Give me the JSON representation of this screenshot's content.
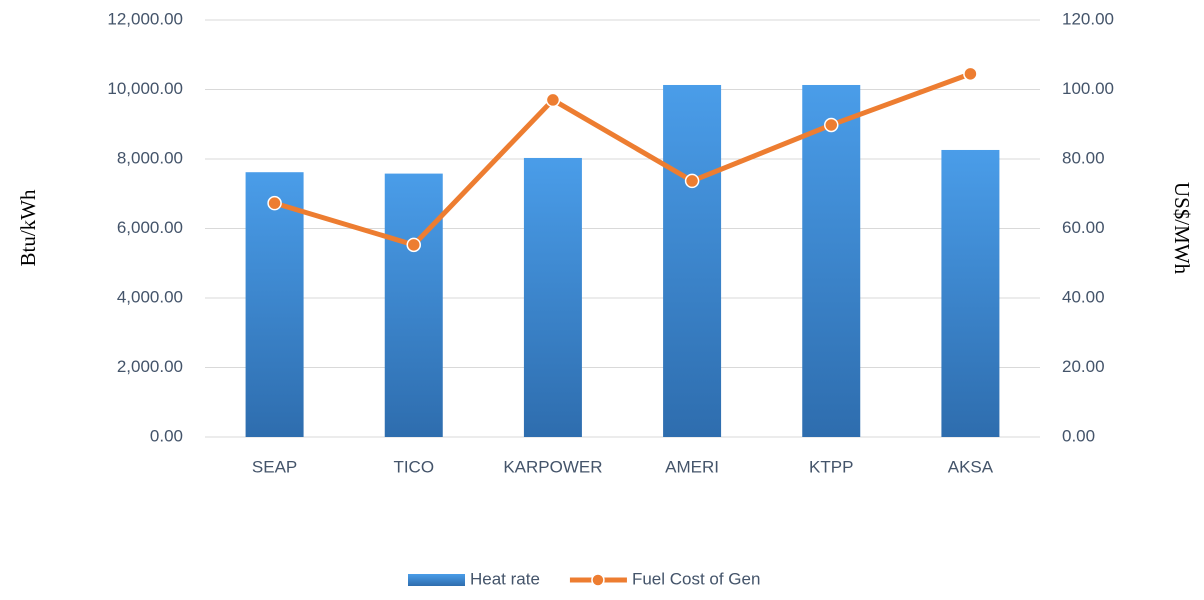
{
  "chart_data": {
    "type": "bar_line",
    "categories": [
      "SEAP",
      "TICO",
      "KARPOWER",
      "AMERI",
      "KTPP",
      "AKSA"
    ],
    "series": [
      {
        "name": "Heat rate",
        "type": "bar",
        "color": "#3d8ad8",
        "values": [
          7620,
          7580,
          8030,
          10130,
          10130,
          8260
        ]
      },
      {
        "name": "Fuel Cost of Gen",
        "type": "line",
        "axis": "y2",
        "color": "#ed7d31",
        "values": [
          67.3,
          55.3,
          97.0,
          73.7,
          89.8,
          104.5
        ]
      }
    ],
    "y_label": "Btu/kWh",
    "y2_label": "US$/MWh",
    "ylim": [
      0,
      12000
    ],
    "yticks": [
      {
        "value": 0,
        "label": "0.00"
      },
      {
        "value": 2000,
        "label": "2,000.00"
      },
      {
        "value": 4000,
        "label": "4,000.00"
      },
      {
        "value": 6000,
        "label": "6,000.00"
      },
      {
        "value": 8000,
        "label": "8,000.00"
      },
      {
        "value": 10000,
        "label": "10,000.00"
      },
      {
        "value": 12000,
        "label": "12,000.00"
      }
    ],
    "y2lim": [
      0,
      120
    ],
    "y2ticks": [
      {
        "value": 0,
        "label": "0.00"
      },
      {
        "value": 20,
        "label": "20.00"
      },
      {
        "value": 40,
        "label": "40.00"
      },
      {
        "value": 60,
        "label": "60.00"
      },
      {
        "value": 80,
        "label": "80.00"
      },
      {
        "value": 100,
        "label": "100.00"
      },
      {
        "value": 120,
        "label": "120.00"
      }
    ],
    "grid": true,
    "legend": "bottom"
  }
}
